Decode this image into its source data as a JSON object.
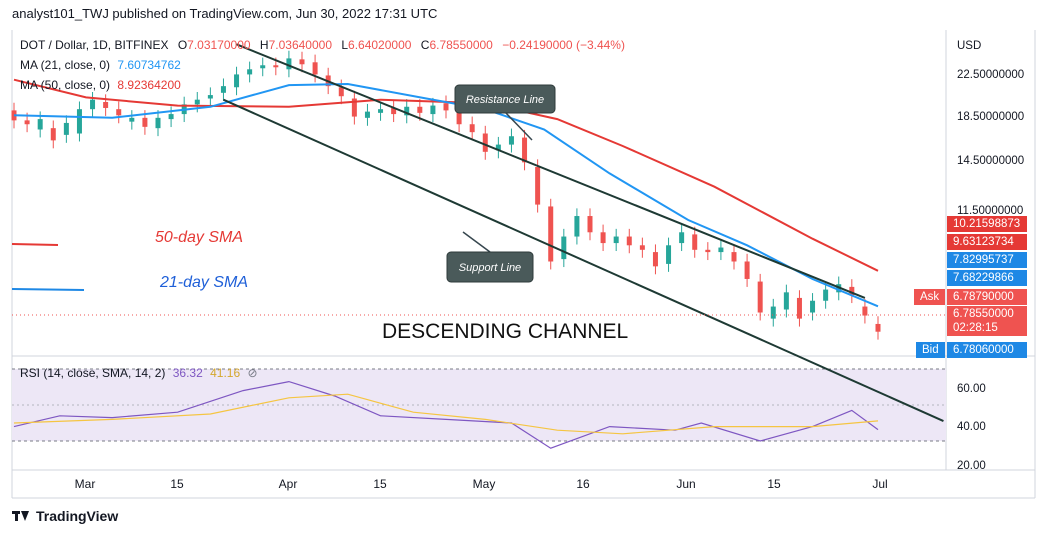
{
  "header": "analyst101_TWJ published on TradingView.com, Jun 30, 2022 17:31 UTC",
  "symbol_line": {
    "symbol": "DOT / Dollar, 1D, BITFINEX",
    "o_label": "O",
    "o": "7.03170000",
    "h_label": "H",
    "h": "7.03640000",
    "l_label": "L",
    "l": "6.64020000",
    "c_label": "C",
    "c": "6.78550000",
    "change": "−0.24190000 (−3.44%)"
  },
  "ma21": {
    "label": "MA (21, close, 0)",
    "value": "7.60734762",
    "color": "#2196f3"
  },
  "ma50": {
    "label": "MA (50, close, 0)",
    "value": "8.92364200",
    "color": "#e53935"
  },
  "rsi": {
    "label": "RSI (14, close, SMA, 14, 2)",
    "value": "36.32",
    "sma_value": "41.16",
    "color": "#7e57c2",
    "sma_color": "#f5c542"
  },
  "annotations": {
    "sma50": "50-day SMA",
    "sma21": "21-day SMA",
    "channel": "DESCENDING CHANNEL",
    "resistance": "Resistance Line",
    "support": "Support Line"
  },
  "price_axis": {
    "currency": "USD",
    "ticks": [
      "22.50000000",
      "18.50000000",
      "14.50000000",
      "11.50000000"
    ],
    "tags": {
      "t1": "10.21598873",
      "t2": "9.63123734",
      "t3": "7.82995737",
      "t4": "7.68229866",
      "ask_label": "Ask",
      "ask": "6.78790000",
      "last": "6.78550000",
      "countdown": "02:28:15",
      "bid_label": "Bid",
      "bid": "6.78060000"
    }
  },
  "rsi_axis": {
    "ticks": [
      "60.00",
      "40.00",
      "20.00"
    ]
  },
  "time_axis": [
    "Mar",
    "15",
    "Apr",
    "15",
    "May",
    "16",
    "Jun",
    "15",
    "Jul"
  ],
  "footer": "TradingView",
  "colors": {
    "up": "#26a69a",
    "down": "#ef5350",
    "channel": "#1e3a34",
    "rsi_band": "#ede7f6"
  },
  "chart_data": {
    "type": "candlestick",
    "title": "DOT / Dollar, 1D, BITFINEX",
    "y_scale": "log",
    "ylim": [
      6.2,
      26
    ],
    "x_range": [
      "2022-02-18",
      "2022-06-30"
    ],
    "candles": [
      {
        "d": "02-18",
        "o": 18.3,
        "c": 17.5
      },
      {
        "d": "02-20",
        "o": 17.5,
        "c": 17.2
      },
      {
        "d": "02-22",
        "o": 16.8,
        "c": 17.6
      },
      {
        "d": "02-24",
        "o": 16.9,
        "c": 16.0
      },
      {
        "d": "02-26",
        "o": 16.4,
        "c": 17.3
      },
      {
        "d": "02-28",
        "o": 16.5,
        "c": 18.4
      },
      {
        "d": "03-02",
        "o": 18.4,
        "c": 19.2
      },
      {
        "d": "03-04",
        "o": 19.0,
        "c": 18.5
      },
      {
        "d": "03-06",
        "o": 18.4,
        "c": 17.9
      },
      {
        "d": "03-08",
        "o": 17.4,
        "c": 17.7
      },
      {
        "d": "03-10",
        "o": 17.7,
        "c": 17.0
      },
      {
        "d": "03-12",
        "o": 16.9,
        "c": 17.7
      },
      {
        "d": "03-14",
        "o": 17.6,
        "c": 18.0
      },
      {
        "d": "03-16",
        "o": 18.0,
        "c": 18.8
      },
      {
        "d": "03-18",
        "o": 18.8,
        "c": 19.2
      },
      {
        "d": "03-20",
        "o": 19.3,
        "c": 19.6
      },
      {
        "d": "03-22",
        "o": 19.8,
        "c": 20.4
      },
      {
        "d": "03-24",
        "o": 20.3,
        "c": 21.5
      },
      {
        "d": "03-26",
        "o": 21.5,
        "c": 22.0
      },
      {
        "d": "03-28",
        "o": 22.1,
        "c": 22.4
      },
      {
        "d": "03-30",
        "o": 22.4,
        "c": 22.2
      },
      {
        "d": "04-01",
        "o": 22.0,
        "c": 23.1
      },
      {
        "d": "04-03",
        "o": 23.0,
        "c": 22.5
      },
      {
        "d": "04-05",
        "o": 22.7,
        "c": 21.5
      },
      {
        "d": "04-07",
        "o": 21.4,
        "c": 20.4
      },
      {
        "d": "04-09",
        "o": 20.3,
        "c": 19.5
      },
      {
        "d": "04-11",
        "o": 19.3,
        "c": 17.8
      },
      {
        "d": "04-13",
        "o": 17.7,
        "c": 18.2
      },
      {
        "d": "04-15",
        "o": 18.1,
        "c": 18.4
      },
      {
        "d": "04-17",
        "o": 18.5,
        "c": 18.0
      },
      {
        "d": "04-19",
        "o": 17.9,
        "c": 18.6
      },
      {
        "d": "04-21",
        "o": 18.6,
        "c": 18.1
      },
      {
        "d": "04-23",
        "o": 18.0,
        "c": 18.7
      },
      {
        "d": "04-25",
        "o": 18.9,
        "c": 18.3
      },
      {
        "d": "04-27",
        "o": 18.3,
        "c": 17.2
      },
      {
        "d": "04-29",
        "o": 17.2,
        "c": 16.6
      },
      {
        "d": "05-01",
        "o": 16.5,
        "c": 15.2
      },
      {
        "d": "05-03",
        "o": 15.3,
        "c": 15.7
      },
      {
        "d": "05-05",
        "o": 15.7,
        "c": 16.3
      },
      {
        "d": "05-07",
        "o": 16.2,
        "c": 14.5
      },
      {
        "d": "05-09",
        "o": 14.2,
        "c": 12.0
      },
      {
        "d": "05-11",
        "o": 11.9,
        "c": 9.3
      },
      {
        "d": "05-13",
        "o": 9.4,
        "c": 10.4
      },
      {
        "d": "05-15",
        "o": 10.4,
        "c": 11.4
      },
      {
        "d": "05-17",
        "o": 11.4,
        "c": 10.6
      },
      {
        "d": "05-19",
        "o": 10.6,
        "c": 10.1
      },
      {
        "d": "05-21",
        "o": 10.1,
        "c": 10.4
      },
      {
        "d": "05-23",
        "o": 10.4,
        "c": 10.0
      },
      {
        "d": "05-25",
        "o": 10.0,
        "c": 9.8
      },
      {
        "d": "05-27",
        "o": 9.7,
        "c": 9.1
      },
      {
        "d": "05-29",
        "o": 9.2,
        "c": 10.0
      },
      {
        "d": "05-31",
        "o": 10.1,
        "c": 10.6
      },
      {
        "d": "06-02",
        "o": 10.5,
        "c": 9.8
      },
      {
        "d": "06-04",
        "o": 9.8,
        "c": 9.7
      },
      {
        "d": "06-06",
        "o": 9.7,
        "c": 9.9
      },
      {
        "d": "06-08",
        "o": 9.7,
        "c": 9.3
      },
      {
        "d": "06-10",
        "o": 9.3,
        "c": 8.6
      },
      {
        "d": "06-12",
        "o": 8.5,
        "c": 7.4
      },
      {
        "d": "06-14",
        "o": 7.2,
        "c": 7.6
      },
      {
        "d": "06-16",
        "o": 7.5,
        "c": 8.1
      },
      {
        "d": "06-18",
        "o": 7.9,
        "c": 7.2
      },
      {
        "d": "06-20",
        "o": 7.4,
        "c": 7.8
      },
      {
        "d": "06-22",
        "o": 7.8,
        "c": 8.2
      },
      {
        "d": "06-24",
        "o": 8.1,
        "c": 8.4
      },
      {
        "d": "06-26",
        "o": 8.3,
        "c": 8.0
      },
      {
        "d": "06-28",
        "o": 7.6,
        "c": 7.3
      },
      {
        "d": "06-30",
        "o": 7.03,
        "c": 6.79
      }
    ],
    "ma21_points": [
      [
        "02-18",
        17.9
      ],
      [
        "03-05",
        17.7
      ],
      [
        "03-20",
        18.6
      ],
      [
        "04-01",
        20.5
      ],
      [
        "04-10",
        20.6
      ],
      [
        "04-22",
        19.3
      ],
      [
        "05-01",
        18.4
      ],
      [
        "05-10",
        16.8
      ],
      [
        "05-20",
        13.8
      ],
      [
        "06-01",
        11.2
      ],
      [
        "06-10",
        10.0
      ],
      [
        "06-20",
        8.6
      ],
      [
        "06-30",
        7.61
      ]
    ],
    "ma50_points": [
      [
        "02-18",
        21.0
      ],
      [
        "03-01",
        19.4
      ],
      [
        "03-15",
        18.7
      ],
      [
        "04-01",
        18.6
      ],
      [
        "04-15",
        19.2
      ],
      [
        "05-01",
        18.9
      ],
      [
        "05-12",
        17.6
      ],
      [
        "05-22",
        15.6
      ],
      [
        "06-05",
        13.0
      ],
      [
        "06-20",
        10.3
      ],
      [
        "06-30",
        8.92
      ]
    ],
    "rsi_points": [
      [
        "02-18",
        38
      ],
      [
        "02-25",
        44
      ],
      [
        "03-05",
        43
      ],
      [
        "03-15",
        46
      ],
      [
        "03-25",
        58
      ],
      [
        "04-01",
        63
      ],
      [
        "04-08",
        55
      ],
      [
        "04-15",
        44
      ],
      [
        "04-25",
        42
      ],
      [
        "05-05",
        40
      ],
      [
        "05-11",
        26
      ],
      [
        "05-20",
        38
      ],
      [
        "05-30",
        36
      ],
      [
        "06-03",
        40
      ],
      [
        "06-12",
        30
      ],
      [
        "06-20",
        38
      ],
      [
        "06-26",
        47
      ],
      [
        "06-30",
        36.32
      ]
    ],
    "rsi_sma_points": [
      [
        "02-18",
        40
      ],
      [
        "03-05",
        42
      ],
      [
        "03-20",
        45
      ],
      [
        "04-01",
        54
      ],
      [
        "04-10",
        56
      ],
      [
        "04-20",
        46
      ],
      [
        "05-01",
        42
      ],
      [
        "05-12",
        36
      ],
      [
        "05-22",
        34
      ],
      [
        "06-05",
        38
      ],
      [
        "06-20",
        38
      ],
      [
        "06-30",
        41.16
      ]
    ],
    "rsi_ylim": [
      15,
      75
    ],
    "resistance_line": [
      [
        "03-24",
        24.6
      ],
      [
        "06-28",
        7.9
      ]
    ],
    "support_line": [
      [
        "03-22",
        19.2
      ],
      [
        "07-10",
        4.55
      ]
    ],
    "rsi_bands": [
      30,
      50,
      70
    ]
  }
}
